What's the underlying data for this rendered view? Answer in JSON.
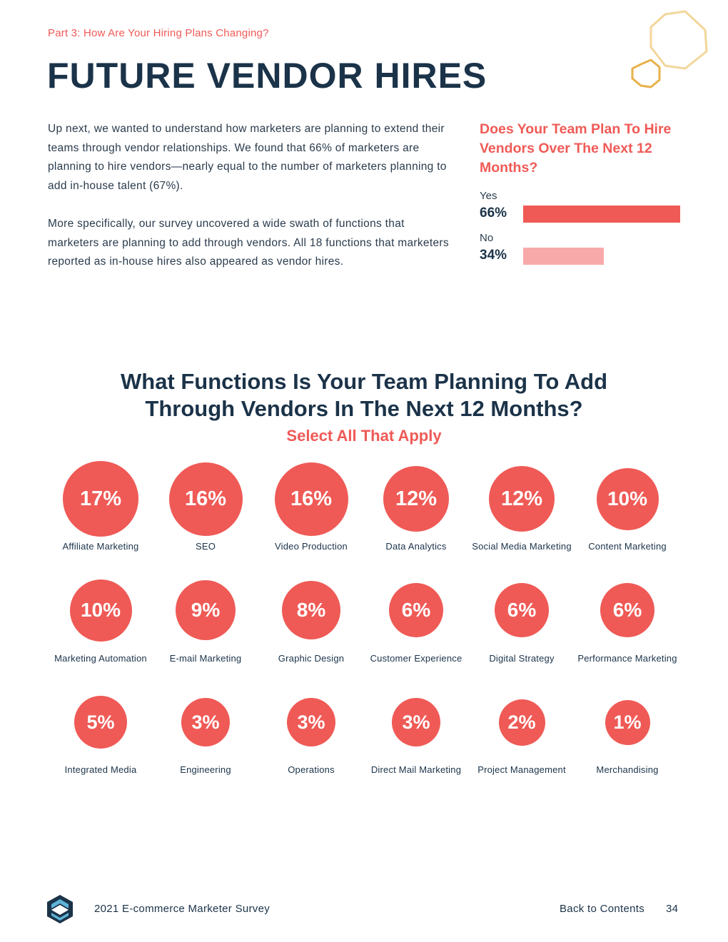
{
  "header": {
    "eyebrow": "Part 3: How Are Your Hiring Plans Changing?",
    "title": "FUTURE VENDOR HIRES"
  },
  "intro": {
    "paragraph_1": "Up next, we wanted to understand how marketers are planning to extend their teams through vendor relationships. We found that 66% of marketers are planning to hire vendors—nearly equal to the number of marketers planning to add in-house talent (67%).",
    "paragraph_2": "More specifically, our survey uncovered a wide swath of functions that marketers are planning to add through vendors. All 18 functions that marketers reported as in-house hires also appeared as vendor hires."
  },
  "colors": {
    "accent": "#ef5a56",
    "accent_light": "#f6a9a8",
    "navy": "#1b3349",
    "hex_gold": "#e8b14a",
    "hex_light": "#f3d69a"
  },
  "chart_data": [
    {
      "type": "bar",
      "orientation": "horizontal",
      "title": "Does Your Team Plan To Hire Vendors Over The Next 12 Months?",
      "categories": [
        "Yes",
        "No"
      ],
      "values": [
        66,
        34
      ],
      "value_labels": [
        "66%",
        "34%"
      ],
      "unit": "%"
    },
    {
      "type": "bubble-grid",
      "title": "What Functions Is Your Team Planning To Add Through Vendors In The Next 12 Months?",
      "subtitle": "Select All That Apply",
      "unit": "%",
      "items": [
        {
          "label": "Affiliate Marketing",
          "value": 17,
          "value_label": "17%"
        },
        {
          "label": "SEO",
          "value": 16,
          "value_label": "16%"
        },
        {
          "label": "Video Production",
          "value": 16,
          "value_label": "16%"
        },
        {
          "label": "Data Analytics",
          "value": 12,
          "value_label": "12%"
        },
        {
          "label": "Social Media Marketing",
          "value": 12,
          "value_label": "12%"
        },
        {
          "label": "Content Marketing",
          "value": 10,
          "value_label": "10%"
        },
        {
          "label": "Marketing Automation",
          "value": 10,
          "value_label": "10%"
        },
        {
          "label": "E-mail Marketing",
          "value": 9,
          "value_label": "9%"
        },
        {
          "label": "Graphic Design",
          "value": 8,
          "value_label": "8%"
        },
        {
          "label": "Customer Experience",
          "value": 6,
          "value_label": "6%"
        },
        {
          "label": "Digital Strategy",
          "value": 6,
          "value_label": "6%"
        },
        {
          "label": "Performance Marketing",
          "value": 6,
          "value_label": "6%"
        },
        {
          "label": "Integrated Media",
          "value": 5,
          "value_label": "5%"
        },
        {
          "label": "Engineering",
          "value": 3,
          "value_label": "3%"
        },
        {
          "label": "Operations",
          "value": 3,
          "value_label": "3%"
        },
        {
          "label": "Direct Mail Marketing",
          "value": 3,
          "value_label": "3%"
        },
        {
          "label": "Project Management",
          "value": 2,
          "value_label": "2%"
        },
        {
          "label": "Merchandising",
          "value": 1,
          "value_label": "1%"
        }
      ]
    }
  ],
  "footer": {
    "report_title": "2021 E-commerce Marketer Survey",
    "back_link": "Back to Contents",
    "page_number": "34"
  }
}
